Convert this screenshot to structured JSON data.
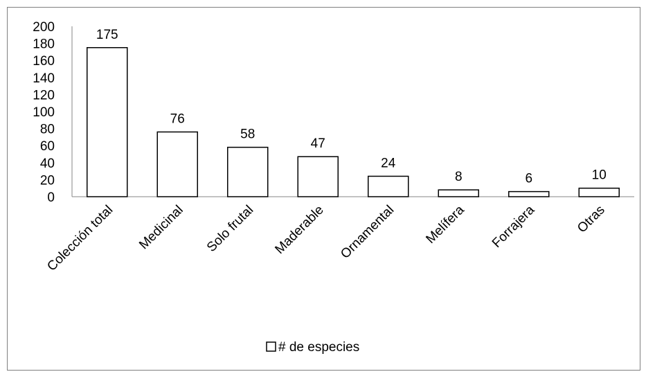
{
  "chart_data": {
    "type": "bar",
    "categories": [
      "Colección total",
      "Medicinal",
      "Solo frutal",
      "Maderable",
      "Ornamental",
      "Melífera",
      "Forrajera",
      "Otras"
    ],
    "series": [
      {
        "name": "# de especies",
        "values": [
          175,
          76,
          58,
          47,
          24,
          8,
          6,
          10
        ]
      }
    ],
    "title": "",
    "xlabel": "",
    "ylabel": "",
    "ylim": [
      0,
      200
    ],
    "yticks": [
      "0",
      "20",
      "40",
      "60",
      "80",
      "100",
      "120",
      "140",
      "160",
      "180",
      "200"
    ],
    "grid": false,
    "legend_position": "bottom",
    "bar_fill": "#ffffff",
    "bar_stroke": "#000000",
    "axis_color": "#868686"
  }
}
